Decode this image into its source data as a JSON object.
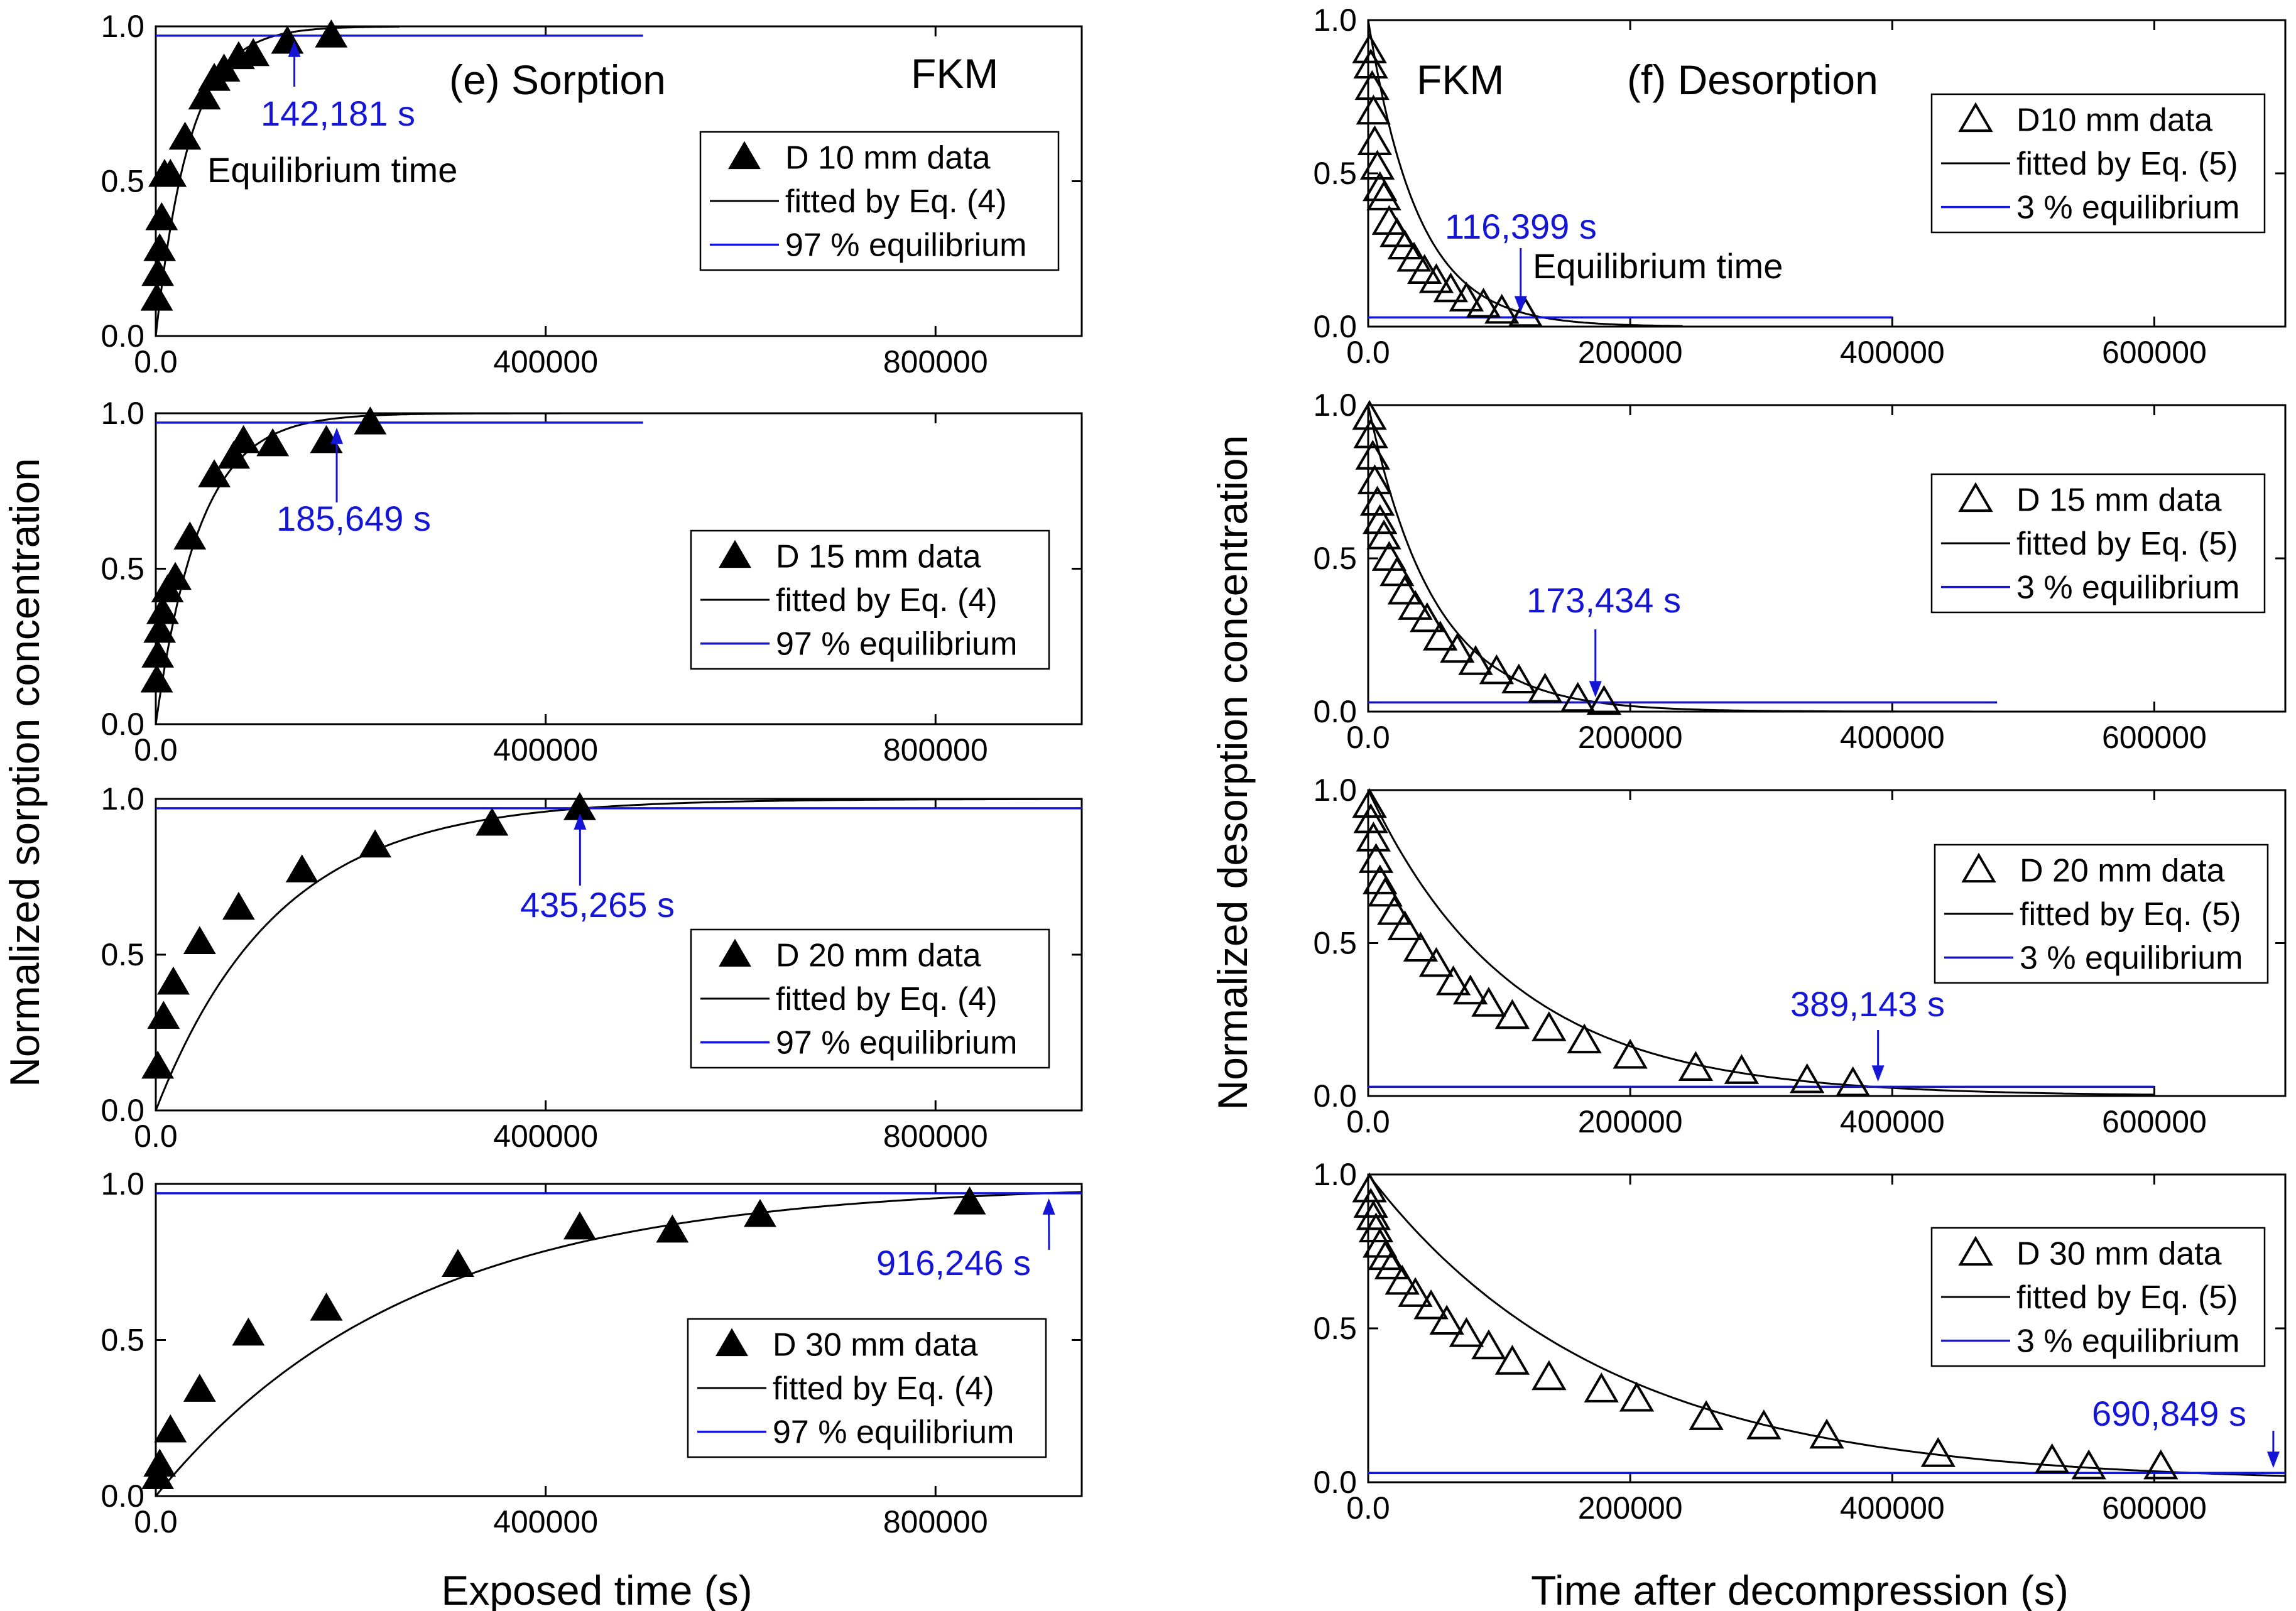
{
  "figure": {
    "left_ylabel": "Normalized sorption concentration",
    "left_xlabel": "Exposed time (s)",
    "right_ylabel": "Normalized desorption concentration",
    "right_xlabel": "Time after decompression (s)",
    "colors": {
      "data": "#000000",
      "equilibrium": "#1515d6"
    }
  },
  "chart_data": [
    {
      "type": "scatter",
      "column": "left",
      "panel": "e-1",
      "title": "(e) Sorption",
      "material": "FKM",
      "diameter": "D 10 mm",
      "marker": "filled-triangle",
      "xlim": [
        0,
        950000
      ],
      "ylim": [
        0,
        1
      ],
      "xticks": [
        0,
        400000,
        800000
      ],
      "yticks": [
        0.0,
        0.5,
        1.0
      ],
      "x": [
        1000,
        2000,
        4000,
        6000,
        9000,
        15000,
        30000,
        50000,
        60000,
        70000,
        85000,
        100000,
        135000,
        180000
      ],
      "y": [
        0.12,
        0.2,
        0.28,
        0.38,
        0.52,
        0.52,
        0.64,
        0.77,
        0.83,
        0.86,
        0.9,
        0.91,
        0.95,
        0.97
      ],
      "fit_tau": 35000,
      "fit_xmax": 250000,
      "fit_direction": "rise",
      "equilibrium_level": 0.97,
      "equilibrium_xmax": 500000,
      "equilibrium_time": 142181,
      "equilibrium_label": "142,181 s",
      "equilibrium_note": "Equilibrium time",
      "legend": [
        "D 10 mm data",
        "fitted by Eq. (4)",
        "97 % equilibrium"
      ]
    },
    {
      "type": "scatter",
      "column": "left",
      "panel": "e-2",
      "diameter": "D 15 mm",
      "marker": "filled-triangle",
      "xlim": [
        0,
        950000
      ],
      "ylim": [
        0,
        1
      ],
      "xticks": [
        0,
        400000,
        800000
      ],
      "yticks": [
        0.0,
        0.5,
        1.0
      ],
      "x": [
        1000,
        2000,
        4000,
        7000,
        12000,
        20000,
        35000,
        60000,
        80000,
        90000,
        120000,
        175000,
        220000
      ],
      "y": [
        0.14,
        0.22,
        0.3,
        0.36,
        0.43,
        0.47,
        0.6,
        0.8,
        0.86,
        0.91,
        0.9,
        0.91,
        0.97
      ],
      "fit_tau": 45000,
      "fit_xmax": 500000,
      "fit_direction": "rise",
      "equilibrium_level": 0.97,
      "equilibrium_xmax": 500000,
      "equilibrium_time": 185649,
      "equilibrium_label": "185,649 s",
      "legend": [
        "D 15 mm data",
        "fitted by Eq. (4)",
        "97 % equilibrium"
      ]
    },
    {
      "type": "scatter",
      "column": "left",
      "panel": "e-3",
      "diameter": "D 20 mm",
      "marker": "filled-triangle",
      "xlim": [
        0,
        950000
      ],
      "ylim": [
        0,
        1
      ],
      "xticks": [
        0,
        400000,
        800000
      ],
      "yticks": [
        0.0,
        0.5,
        1.0
      ],
      "x": [
        2000,
        8000,
        18000,
        45000,
        85000,
        150000,
        225000,
        345000,
        435000
      ],
      "y": [
        0.14,
        0.3,
        0.41,
        0.54,
        0.65,
        0.77,
        0.85,
        0.92,
        0.97
      ],
      "fit_tau": 125000,
      "fit_xmax": 950000,
      "fit_direction": "rise",
      "equilibrium_level": 0.97,
      "equilibrium_xmax": 950000,
      "equilibrium_time": 435265,
      "equilibrium_label": "435,265 s",
      "legend": [
        "D 20 mm data",
        "fitted by Eq. (4)",
        "97 % equilibrium"
      ]
    },
    {
      "type": "scatter",
      "column": "left",
      "panel": "e-4",
      "diameter": "D 30 mm",
      "marker": "filled-triangle",
      "xlim": [
        0,
        950000
      ],
      "ylim": [
        0,
        1
      ],
      "xticks": [
        0,
        400000,
        800000
      ],
      "yticks": [
        0.0,
        0.5,
        1.0
      ],
      "x": [
        2000,
        4000,
        15000,
        45000,
        95000,
        175000,
        310000,
        435000,
        530000,
        620000,
        835000
      ],
      "y": [
        0.06,
        0.1,
        0.21,
        0.34,
        0.52,
        0.6,
        0.74,
        0.86,
        0.85,
        0.9,
        0.94
      ],
      "fit_tau": 260000,
      "fit_xmax": 950000,
      "fit_direction": "rise",
      "equilibrium_level": 0.97,
      "equilibrium_xmax": 950000,
      "equilibrium_time": 916246,
      "equilibrium_label": "916,246 s",
      "legend": [
        "D 30 mm data",
        "fitted by Eq. (4)",
        "97 % equilibrium"
      ]
    },
    {
      "type": "scatter",
      "column": "right",
      "panel": "f-1",
      "title": "(f) Desorption",
      "material": "FKM",
      "diameter": "D10 mm",
      "marker": "open-triangle",
      "xlim": [
        0,
        700000
      ],
      "ylim": [
        0,
        1
      ],
      "xticks": [
        0,
        200000,
        400000,
        600000
      ],
      "yticks": [
        0.0,
        0.5,
        1.0
      ],
      "x": [
        1000,
        2000,
        3000,
        4000,
        5000,
        7000,
        9000,
        12000,
        16000,
        22000,
        28000,
        35000,
        43000,
        52000,
        63000,
        75000,
        88000,
        102000,
        120000
      ],
      "y": [
        0.9,
        0.85,
        0.78,
        0.7,
        0.6,
        0.52,
        0.45,
        0.42,
        0.34,
        0.3,
        0.26,
        0.22,
        0.18,
        0.15,
        0.12,
        0.09,
        0.07,
        0.05,
        0.04
      ],
      "fit_tau": 38000,
      "fit_xmax": 240000,
      "fit_direction": "decay",
      "equilibrium_level": 0.03,
      "equilibrium_xmax": 400000,
      "equilibrium_time": 116399,
      "equilibrium_label": "116,399 s",
      "equilibrium_note": "Equilibrium time",
      "legend": [
        "D10 mm data",
        "fitted by Eq. (5)",
        "3 % equilibrium"
      ]
    },
    {
      "type": "scatter",
      "column": "right",
      "panel": "f-2",
      "diameter": "D 15 mm",
      "marker": "open-triangle",
      "xlim": [
        0,
        700000
      ],
      "ylim": [
        0,
        1
      ],
      "xticks": [
        0,
        200000,
        400000,
        600000
      ],
      "yticks": [
        0.0,
        0.5,
        1.0
      ],
      "x": [
        1000,
        2000,
        3500,
        5000,
        7000,
        9000,
        12000,
        16000,
        22000,
        28000,
        36000,
        45000,
        55000,
        68000,
        82000,
        98000,
        115000,
        135000,
        160000,
        180000
      ],
      "y": [
        0.96,
        0.9,
        0.83,
        0.75,
        0.68,
        0.62,
        0.57,
        0.5,
        0.45,
        0.39,
        0.34,
        0.3,
        0.24,
        0.2,
        0.16,
        0.13,
        0.1,
        0.07,
        0.04,
        0.03
      ],
      "fit_tau": 50000,
      "fit_xmax": 480000,
      "fit_direction": "decay",
      "equilibrium_level": 0.03,
      "equilibrium_xmax": 480000,
      "equilibrium_time": 173434,
      "equilibrium_label": "173,434 s",
      "legend": [
        "D 15 mm data",
        "fitted by Eq. (5)",
        "3 % equilibrium"
      ]
    },
    {
      "type": "scatter",
      "column": "right",
      "panel": "f-3",
      "diameter": "D 20 mm",
      "marker": "open-triangle",
      "xlim": [
        0,
        700000
      ],
      "ylim": [
        0,
        1
      ],
      "xticks": [
        0,
        200000,
        400000,
        600000
      ],
      "yticks": [
        0.0,
        0.5,
        1.0
      ],
      "x": [
        1000,
        2000,
        4000,
        6000,
        9000,
        13000,
        20000,
        28000,
        40000,
        52000,
        65000,
        78000,
        92000,
        110000,
        138000,
        165000,
        200000,
        250000,
        285000,
        335000,
        370000
      ],
      "y": [
        0.95,
        0.9,
        0.84,
        0.77,
        0.7,
        0.66,
        0.6,
        0.55,
        0.48,
        0.43,
        0.37,
        0.34,
        0.3,
        0.26,
        0.22,
        0.18,
        0.13,
        0.09,
        0.08,
        0.05,
        0.04
      ],
      "fit_tau": 110000,
      "fit_xmax": 600000,
      "fit_direction": "decay",
      "equilibrium_level": 0.03,
      "equilibrium_xmax": 600000,
      "equilibrium_time": 389143,
      "equilibrium_label": "389,143 s",
      "legend": [
        "D 20 mm data",
        "fitted by Eq. (5)",
        "3 % equilibrium"
      ]
    },
    {
      "type": "scatter",
      "column": "right",
      "panel": "f-4",
      "diameter": "D 30 mm",
      "marker": "open-triangle",
      "xlim": [
        0,
        700000
      ],
      "ylim": [
        0,
        1
      ],
      "xticks": [
        0,
        200000,
        400000,
        600000
      ],
      "yticks": [
        0.0,
        0.5,
        1.0
      ],
      "x": [
        1000,
        2000,
        4000,
        6000,
        9000,
        13000,
        18000,
        26000,
        36000,
        48000,
        60000,
        75000,
        92000,
        110000,
        138000,
        178000,
        205000,
        258000,
        302000,
        350000,
        435000,
        522000,
        550000,
        605000
      ],
      "y": [
        0.95,
        0.9,
        0.86,
        0.82,
        0.77,
        0.73,
        0.7,
        0.65,
        0.61,
        0.57,
        0.52,
        0.48,
        0.44,
        0.39,
        0.34,
        0.3,
        0.27,
        0.21,
        0.18,
        0.15,
        0.09,
        0.07,
        0.05,
        0.05
      ],
      "fit_tau": 180000,
      "fit_xmax": 700000,
      "fit_direction": "decay",
      "equilibrium_level": 0.03,
      "equilibrium_xmax": 700000,
      "equilibrium_time": 690849,
      "equilibrium_label": "690,849 s",
      "legend": [
        "D 30 mm data",
        "fitted by Eq. (5)",
        "3 % equilibrium"
      ]
    }
  ]
}
